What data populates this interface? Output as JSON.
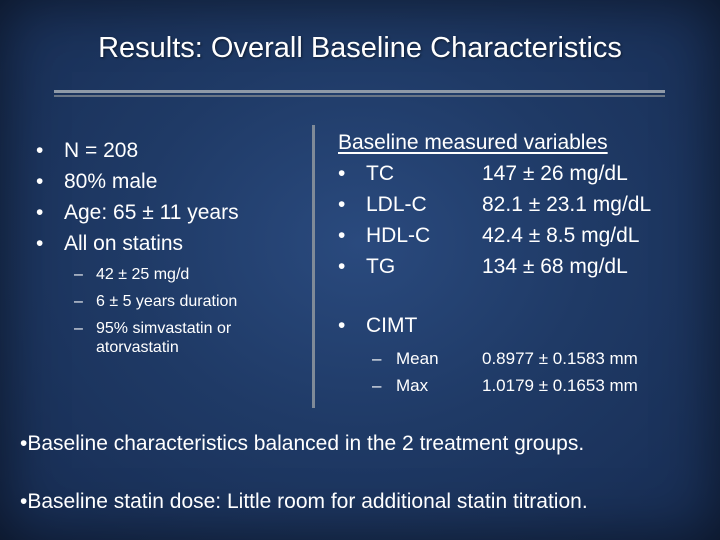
{
  "title": "Results: Overall Baseline Characteristics",
  "left": {
    "bullets": [
      "N = 208",
      "80% male",
      "Age: 65 ± 11 years",
      "All on statins"
    ],
    "sub_bullets": [
      "42 ± 25 mg/d",
      "6 ± 5 years duration",
      "95% simvastatin or atorvastatin"
    ]
  },
  "right": {
    "heading": "Baseline measured variables",
    "rows": [
      {
        "label": "TC",
        "value": "147 ± 26 mg/dL"
      },
      {
        "label": "LDL-C",
        "value": "82.1 ± 23.1 mg/dL"
      },
      {
        "label": "HDL-C",
        "value": "42.4 ± 8.5 mg/dL"
      },
      {
        "label": "TG",
        "value": "134 ± 68 mg/dL"
      }
    ],
    "cimt": {
      "label": "CIMT",
      "rows": [
        {
          "label": "Mean",
          "value": "0.8977 ± 0.1583 mm"
        },
        {
          "label": "Max",
          "value": "1.0179 ± 0.1653 mm"
        }
      ]
    }
  },
  "footer": [
    "•Baseline characteristics balanced in the 2 treatment groups.",
    "•Baseline statin dose: Little room for additional statin titration."
  ],
  "symbols": {
    "bullet": "•",
    "dash": "–"
  }
}
